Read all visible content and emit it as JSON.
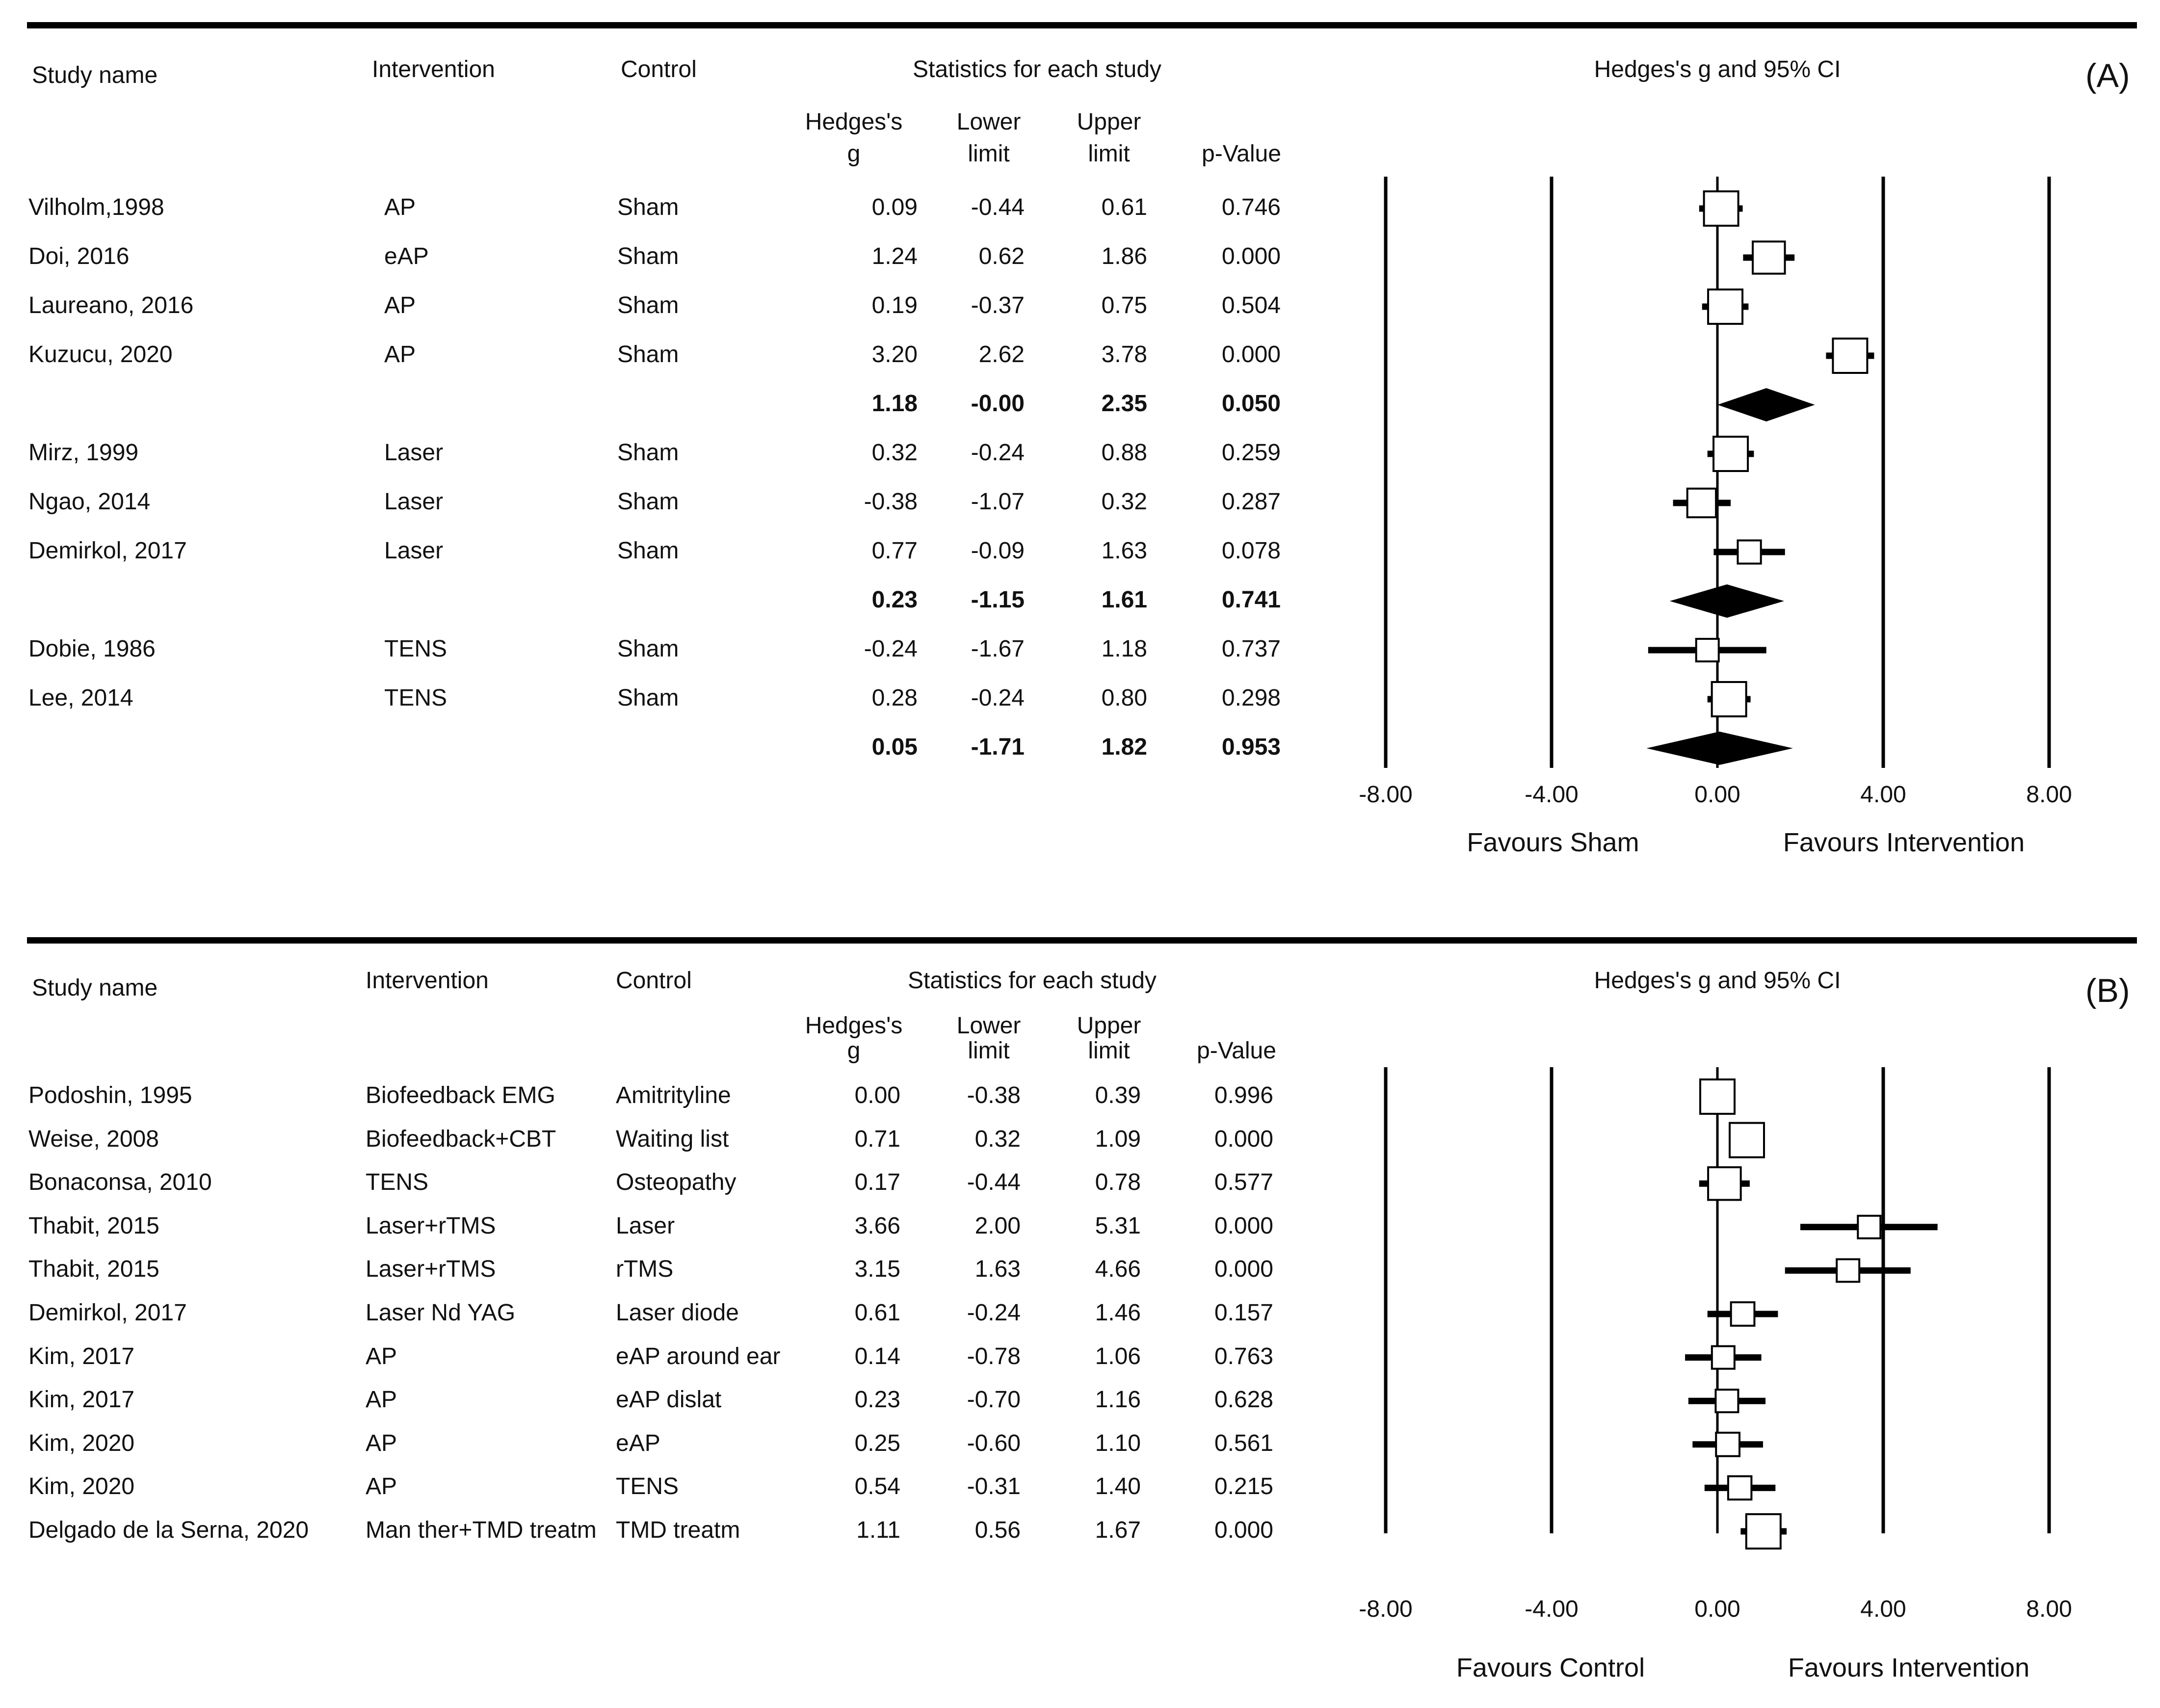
{
  "chart_data": [
    {
      "type": "forest",
      "panel_label": "(A)",
      "columns": {
        "study": "Study name",
        "intervention": "Intervention",
        "control": "Control",
        "group_header": "Statistics for each study",
        "g": [
          "Hedges's",
          "g"
        ],
        "lower": [
          "Lower",
          "limit"
        ],
        "upper": [
          "Upper",
          "limit"
        ],
        "p": "p-Value"
      },
      "plot_title": "Hedges's g and 95% CI",
      "x_ticks": [
        "-8.00",
        "-4.00",
        "0.00",
        "4.00",
        "8.00"
      ],
      "xlim": [
        -8,
        8
      ],
      "favours_left": "Favours Sham",
      "favours_right": "Favours Intervention",
      "rows": [
        {
          "study": "Vilholm,1998",
          "intervention": "AP",
          "control": "Sham",
          "g": "0.09",
          "lower": "-0.44",
          "upper": "0.61",
          "p": "0.746",
          "summary": false
        },
        {
          "study": "Doi, 2016",
          "intervention": "eAP",
          "control": "Sham",
          "g": "1.24",
          "lower": "0.62",
          "upper": "1.86",
          "p": "0.000",
          "summary": false
        },
        {
          "study": "Laureano, 2016",
          "intervention": "AP",
          "control": "Sham",
          "g": "0.19",
          "lower": "-0.37",
          "upper": "0.75",
          "p": "0.504",
          "summary": false
        },
        {
          "study": "Kuzucu, 2020",
          "intervention": "AP",
          "control": "Sham",
          "g": "3.20",
          "lower": "2.62",
          "upper": "3.78",
          "p": "0.000",
          "summary": false
        },
        {
          "study": "",
          "intervention": "",
          "control": "",
          "g": "1.18",
          "lower": "-0.00",
          "upper": "2.35",
          "p": "0.050",
          "summary": true
        },
        {
          "study": "Mirz, 1999",
          "intervention": "Laser",
          "control": "Sham",
          "g": "0.32",
          "lower": "-0.24",
          "upper": "0.88",
          "p": "0.259",
          "summary": false
        },
        {
          "study": "Ngao, 2014",
          "intervention": "Laser",
          "control": "Sham",
          "g": "-0.38",
          "lower": "-1.07",
          "upper": "0.32",
          "p": "0.287",
          "summary": false
        },
        {
          "study": "Demirkol, 2017",
          "intervention": "Laser",
          "control": "Sham",
          "g": "0.77",
          "lower": "-0.09",
          "upper": "1.63",
          "p": "0.078",
          "summary": false
        },
        {
          "study": "",
          "intervention": "",
          "control": "",
          "g": "0.23",
          "lower": "-1.15",
          "upper": "1.61",
          "p": "0.741",
          "summary": true
        },
        {
          "study": "Dobie, 1986",
          "intervention": "TENS",
          "control": "Sham",
          "g": "-0.24",
          "lower": "-1.67",
          "upper": "1.18",
          "p": "0.737",
          "summary": false
        },
        {
          "study": "Lee, 2014",
          "intervention": "TENS",
          "control": "Sham",
          "g": "0.28",
          "lower": "-0.24",
          "upper": "0.80",
          "p": "0.298",
          "summary": false
        },
        {
          "study": "",
          "intervention": "",
          "control": "",
          "g": "0.05",
          "lower": "-1.71",
          "upper": "1.82",
          "p": "0.953",
          "summary": true
        }
      ]
    },
    {
      "type": "forest",
      "panel_label": "(B)",
      "columns": {
        "study": "Study name",
        "intervention": "Intervention",
        "control": "Control",
        "group_header": "Statistics for each study",
        "g": [
          "Hedges's",
          "g"
        ],
        "lower": [
          "Lower",
          "limit"
        ],
        "upper": [
          "Upper",
          "limit"
        ],
        "p": "p-Value"
      },
      "plot_title": "Hedges's g and 95% CI",
      "x_ticks": [
        "-8.00",
        "-4.00",
        "0.00",
        "4.00",
        "8.00"
      ],
      "xlim": [
        -8,
        8
      ],
      "favours_left": "Favours Control",
      "favours_right": "Favours Intervention",
      "rows": [
        {
          "study": "Podoshin, 1995",
          "intervention": "Biofeedback EMG",
          "control": "Amitrityline",
          "g": "0.00",
          "lower": "-0.38",
          "upper": "0.39",
          "p": "0.996",
          "summary": false
        },
        {
          "study": "Weise, 2008",
          "intervention": "Biofeedback+CBT",
          "control": "Waiting list",
          "g": "0.71",
          "lower": "0.32",
          "upper": "1.09",
          "p": "0.000",
          "summary": false
        },
        {
          "study": "Bonaconsa, 2010",
          "intervention": "TENS",
          "control": "Osteopathy",
          "g": "0.17",
          "lower": "-0.44",
          "upper": "0.78",
          "p": "0.577",
          "summary": false
        },
        {
          "study": "Thabit, 2015",
          "intervention": "Laser+rTMS",
          "control": "Laser",
          "g": "3.66",
          "lower": "2.00",
          "upper": "5.31",
          "p": "0.000",
          "summary": false
        },
        {
          "study": "Thabit, 2015",
          "intervention": "Laser+rTMS",
          "control": "rTMS",
          "g": "3.15",
          "lower": "1.63",
          "upper": "4.66",
          "p": "0.000",
          "summary": false
        },
        {
          "study": "Demirkol, 2017",
          "intervention": "Laser Nd YAG",
          "control": "Laser diode",
          "g": "0.61",
          "lower": "-0.24",
          "upper": "1.46",
          "p": "0.157",
          "summary": false
        },
        {
          "study": "Kim, 2017",
          "intervention": "AP",
          "control": "eAP around ear",
          "g": "0.14",
          "lower": "-0.78",
          "upper": "1.06",
          "p": "0.763",
          "summary": false
        },
        {
          "study": "Kim, 2017",
          "intervention": "AP",
          "control": "eAP dislat",
          "g": "0.23",
          "lower": "-0.70",
          "upper": "1.16",
          "p": "0.628",
          "summary": false
        },
        {
          "study": "Kim, 2020",
          "intervention": "AP",
          "control": "eAP",
          "g": "0.25",
          "lower": "-0.60",
          "upper": "1.10",
          "p": "0.561",
          "summary": false
        },
        {
          "study": "Kim, 2020",
          "intervention": "AP",
          "control": "TENS",
          "g": "0.54",
          "lower": "-0.31",
          "upper": "1.40",
          "p": "0.215",
          "summary": false
        },
        {
          "study": "Delgado de la Serna, 2020",
          "intervention": "Man ther+TMD treatm",
          "control": "TMD treatm",
          "g": "1.11",
          "lower": "0.56",
          "upper": "1.67",
          "p": "0.000",
          "summary": false
        }
      ]
    }
  ]
}
